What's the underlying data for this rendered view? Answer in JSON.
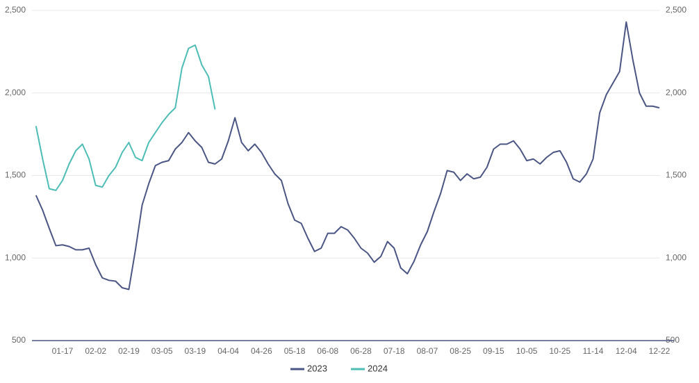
{
  "chart_data": {
    "type": "line",
    "categories": [
      null,
      null,
      null,
      null,
      "01-17",
      null,
      null,
      null,
      null,
      "02-02",
      null,
      null,
      null,
      null,
      "02-19",
      null,
      null,
      null,
      null,
      "03-05",
      null,
      null,
      null,
      null,
      "03-19",
      null,
      null,
      null,
      null,
      "04-04",
      null,
      null,
      null,
      null,
      "04-26",
      null,
      null,
      null,
      null,
      "05-18",
      null,
      null,
      null,
      null,
      "06-08",
      null,
      null,
      null,
      null,
      "06-28",
      null,
      null,
      null,
      null,
      "07-18",
      null,
      null,
      null,
      null,
      "08-07",
      null,
      null,
      null,
      null,
      "08-25",
      null,
      null,
      null,
      null,
      "09-15",
      null,
      null,
      null,
      null,
      "10-05",
      null,
      null,
      null,
      null,
      "10-25",
      null,
      null,
      null,
      null,
      "11-14",
      null,
      null,
      null,
      null,
      "12-04",
      null,
      null,
      null,
      null,
      "12-22"
    ],
    "series": [
      {
        "name": "2023",
        "color": "#4a5583",
        "values": [
          1380,
          1290,
          1180,
          1075,
          1080,
          1070,
          1050,
          1050,
          1060,
          960,
          880,
          865,
          860,
          820,
          810,
          1050,
          1320,
          1450,
          1560,
          1580,
          1590,
          1660,
          1700,
          1760,
          1710,
          1670,
          1580,
          1570,
          1600,
          1710,
          1850,
          1700,
          1650,
          1690,
          1640,
          1570,
          1510,
          1470,
          1330,
          1230,
          1210,
          1120,
          1040,
          1060,
          1150,
          1150,
          1190,
          1170,
          1120,
          1060,
          1030,
          975,
          1010,
          1100,
          1060,
          940,
          905,
          980,
          1080,
          1160,
          1280,
          1390,
          1530,
          1520,
          1470,
          1510,
          1480,
          1490,
          1550,
          1660,
          1690,
          1690,
          1710,
          1660,
          1590,
          1600,
          1570,
          1610,
          1640,
          1650,
          1580,
          1480,
          1460,
          1510,
          1600,
          1880,
          1990,
          2060,
          2130,
          2430,
          2200,
          2000,
          1920,
          1920,
          1910
        ]
      },
      {
        "name": "2024",
        "color": "#4dbdb5",
        "values": [
          1800,
          1600,
          1420,
          1410,
          1470,
          1570,
          1650,
          1690,
          1600,
          1440,
          1430,
          1500,
          1550,
          1640,
          1700,
          1610,
          1590,
          1700,
          1760,
          1820,
          1870,
          1910,
          2150,
          2270,
          2290,
          2170,
          2100,
          1900,
          null,
          null,
          null,
          null,
          null,
          null,
          null,
          null,
          null,
          null,
          null,
          null,
          null,
          null,
          null,
          null,
          null,
          null,
          null,
          null,
          null,
          null,
          null,
          null,
          null,
          null,
          null,
          null,
          null,
          null,
          null,
          null,
          null,
          null,
          null,
          null,
          null,
          null,
          null,
          null,
          null,
          null,
          null,
          null,
          null,
          null,
          null,
          null,
          null,
          null,
          null,
          null,
          null,
          null,
          null,
          null,
          null,
          null,
          null,
          null,
          null,
          null,
          null,
          null,
          null,
          null,
          null
        ]
      }
    ],
    "ylim": [
      500,
      2500
    ],
    "yticks": [
      {
        "value": 500,
        "label": "500"
      },
      {
        "value": 1000,
        "label": "1,000"
      },
      {
        "value": 1500,
        "label": "1,500"
      },
      {
        "value": 2000,
        "label": "2,000"
      },
      {
        "value": 2500,
        "label": "2,500"
      }
    ],
    "y2lim": [
      500,
      2500
    ],
    "y2ticks": [
      {
        "value": 500,
        "label": "500"
      },
      {
        "value": 1000,
        "label": "1,000"
      },
      {
        "value": 1500,
        "label": "1,500"
      },
      {
        "value": 2000,
        "label": "2,000"
      },
      {
        "value": 2500,
        "label": "2,500"
      }
    ],
    "grid": true,
    "legend": "bottom"
  }
}
